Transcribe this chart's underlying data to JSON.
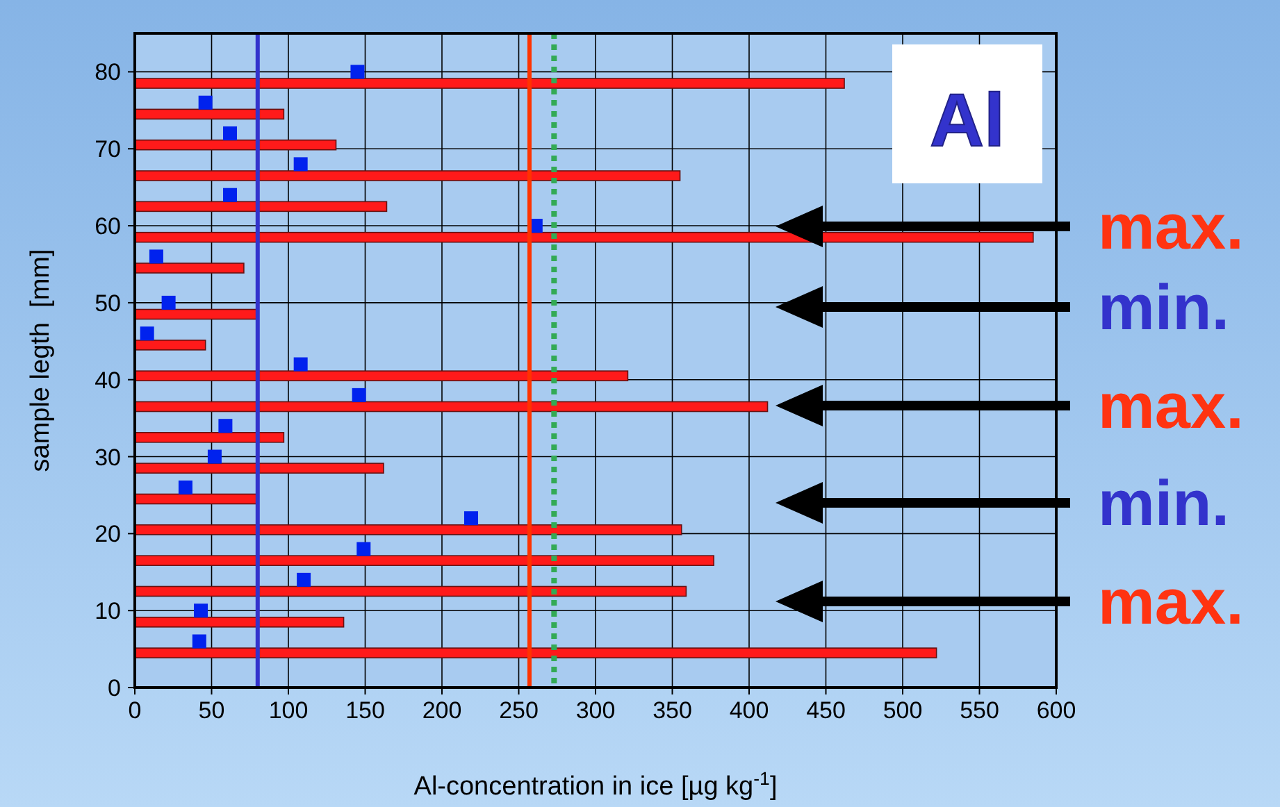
{
  "chart_data": {
    "type": "bar",
    "orientation": "horizontal",
    "title": "Al",
    "xlabel": "Al-concentration in ice [µg kg$^{-1}$]",
    "ylabel": "sample legth  [mm]",
    "xlim": [
      0,
      600
    ],
    "xticks": [
      0,
      50,
      100,
      150,
      200,
      250,
      300,
      350,
      400,
      450,
      500,
      550,
      600
    ],
    "ylim": [
      0,
      85
    ],
    "yticks": [
      0,
      10,
      20,
      30,
      40,
      50,
      60,
      70,
      80
    ],
    "grid": true,
    "series": [
      {
        "color": "#ff1a1a",
        "x": [
          4.5,
          8.5,
          12.5,
          16.5,
          20.5,
          24.5,
          28.5,
          32.5,
          36.5,
          40.5,
          44.5,
          48.5,
          54.5,
          58.5,
          62.5,
          66.5,
          70.5,
          74.5,
          78.5
        ],
        "values": [
          522,
          136,
          359,
          377,
          356,
          80,
          162,
          97,
          412,
          321,
          46,
          80,
          71,
          585,
          164,
          355,
          131,
          97,
          462
        ]
      },
      {
        "type": "scatter",
        "marker": "square",
        "color": "#0022ee",
        "x": [
          6,
          10,
          14,
          18,
          22,
          26,
          30,
          34,
          38,
          42,
          46,
          50,
          56,
          60,
          64,
          68,
          72,
          76,
          80
        ],
        "values": [
          42,
          43,
          110,
          149,
          219,
          33,
          52,
          59,
          146,
          108,
          8,
          22,
          14,
          261,
          62,
          108,
          62,
          46,
          145
        ]
      }
    ],
    "ref_lines": [
      {
        "axis": "x",
        "value": 80,
        "color": "#3333cc",
        "line_style": "solid"
      },
      {
        "axis": "x",
        "value": 257,
        "color": "#ff3300",
        "line_style": "solid"
      },
      {
        "axis": "x",
        "value": 273,
        "color": "#33aa55",
        "line_style": "dotted"
      }
    ],
    "annotations": [
      "max.",
      "min.",
      "max.",
      "min.",
      "max."
    ]
  }
}
